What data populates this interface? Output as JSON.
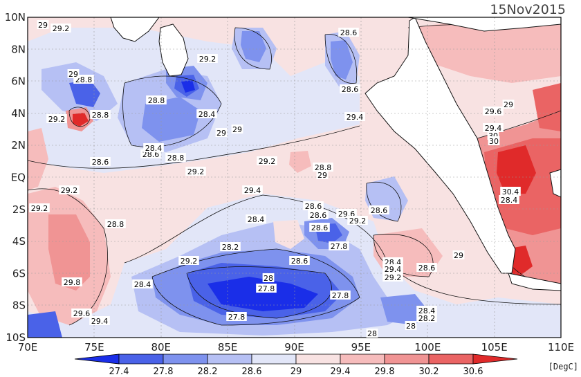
{
  "title": "15Nov2015",
  "unit": "[DegC]",
  "x_ticks": [
    "70E",
    "75E",
    "80E",
    "85E",
    "90E",
    "95E",
    "100E",
    "105E",
    "110E"
  ],
  "y_ticks": [
    "10N",
    "8N",
    "6N",
    "4N",
    "2N",
    "EQ",
    "2S",
    "4S",
    "6S",
    "8S",
    "10S"
  ],
  "colorbar_ticks": [
    "27.4",
    "27.8",
    "28.2",
    "28.6",
    "29",
    "29.4",
    "29.8",
    "30.2",
    "30.6"
  ],
  "colors": {
    "c0": "#1a2ee8",
    "c1": "#4a62e8",
    "c2": "#7e92ee",
    "c3": "#b6c0f4",
    "c4": "#e2e6f8",
    "c5": "#f8e2e2",
    "c6": "#f6bcbc",
    "c7": "#f09494",
    "c8": "#ea6464",
    "c9": "#e02a2a"
  },
  "contour_labels": [
    {
      "t": "29.2"
    },
    {
      "t": "29"
    },
    {
      "t": "28.8"
    },
    {
      "t": "29"
    },
    {
      "t": "29.2"
    },
    {
      "t": "28.8"
    },
    {
      "t": "28.6"
    },
    {
      "t": "29.2"
    },
    {
      "t": "28.8"
    },
    {
      "t": "28.4"
    },
    {
      "t": "28.6"
    },
    {
      "t": "28.8"
    },
    {
      "t": "28.4"
    },
    {
      "t": "29"
    },
    {
      "t": "29"
    },
    {
      "t": "29.2"
    },
    {
      "t": "28.8"
    },
    {
      "t": "29"
    },
    {
      "t": "29.2"
    },
    {
      "t": "29.2"
    },
    {
      "t": "29.4"
    },
    {
      "t": "29.4"
    },
    {
      "t": "28.6"
    },
    {
      "t": "28.4"
    },
    {
      "t": "28.6"
    },
    {
      "t": "29.6"
    },
    {
      "t": "29.2"
    },
    {
      "t": "28.2"
    },
    {
      "t": "27.8"
    },
    {
      "t": "28.6"
    },
    {
      "t": "28.6"
    },
    {
      "t": "28.6"
    },
    {
      "t": "29.2"
    },
    {
      "t": "28.4"
    },
    {
      "t": "28"
    },
    {
      "t": "27.8"
    },
    {
      "t": "27.8"
    },
    {
      "t": "27.8"
    },
    {
      "t": "29.8"
    },
    {
      "t": "29.6"
    },
    {
      "t": "29.4"
    },
    {
      "t": "28.6"
    },
    {
      "t": "28"
    },
    {
      "t": "28.4"
    },
    {
      "t": "28.2"
    },
    {
      "t": "28"
    },
    {
      "t": "28.4"
    },
    {
      "t": "29.4"
    },
    {
      "t": "29.2"
    },
    {
      "t": "28.6"
    },
    {
      "t": "29"
    },
    {
      "t": "29.4"
    },
    {
      "t": "29.6"
    },
    {
      "t": "30"
    },
    {
      "t": "30"
    },
    {
      "t": "30.4"
    },
    {
      "t": "29"
    },
    {
      "t": "29.2"
    },
    {
      "t": "28.8"
    },
    {
      "t": "28.6"
    },
    {
      "t": "28.4"
    }
  ]
}
